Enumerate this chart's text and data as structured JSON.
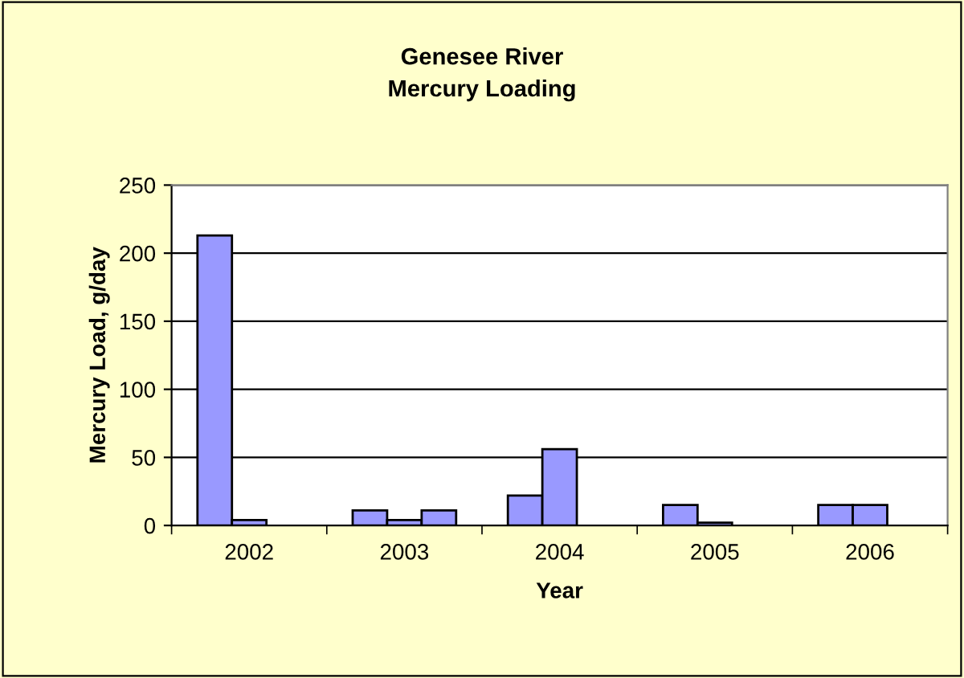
{
  "chart_data": {
    "type": "bar",
    "title": "Genesee River\nMercury Loading",
    "xlabel": "Year",
    "ylabel": "Mercury Load, g/day",
    "categories": [
      "2002",
      "2003",
      "2004",
      "2005",
      "2006"
    ],
    "series": [
      {
        "color": "#9999ff",
        "values": [
          213,
          11,
          22,
          15,
          15
        ]
      },
      {
        "color": "#9999ff",
        "values": [
          4,
          4,
          56,
          2,
          15
        ]
      },
      {
        "color": "#9999ff",
        "values": [
          null,
          11,
          null,
          null,
          null
        ]
      }
    ],
    "ylim": [
      0,
      250
    ],
    "yticks": [
      0,
      50,
      100,
      150,
      200,
      250
    ],
    "grid": "y",
    "legend": false
  }
}
